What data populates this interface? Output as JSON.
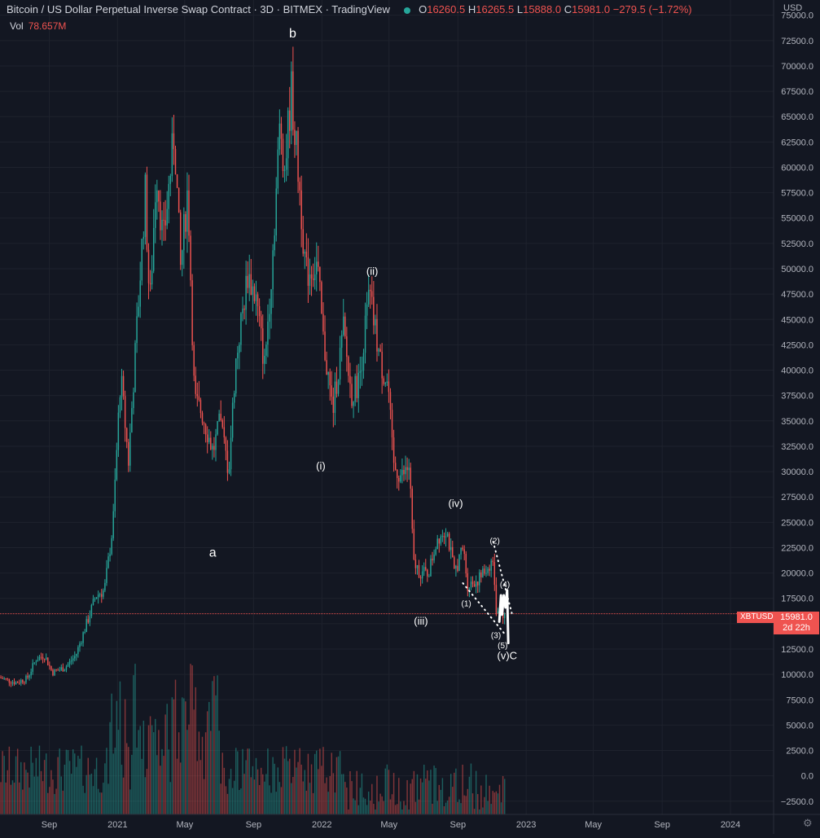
{
  "header": {
    "title": "Bitcoin / US Dollar Perpetual Inverse Swap Contract · 3D · BITMEX · TradingView",
    "open_label": "O",
    "open": "16260.5",
    "high_label": "H",
    "high": "16265.5",
    "low_label": "L",
    "low": "15888.0",
    "close_label": "C",
    "close": "15981.0",
    "change": "−279.5 (−1.72%)",
    "vol_label": "Vol",
    "vol_value": "78.657M",
    "currency": "USD"
  },
  "price_tag": {
    "symbol": "XBTUSD",
    "price": "15981.0",
    "countdown": "2d 22h"
  },
  "colors": {
    "background": "#131722",
    "up": "#26a69a",
    "down": "#ef5350",
    "grid": "#1e222d",
    "text": "#d1d4dc",
    "axis_text": "#b2b5be"
  },
  "chart_data": {
    "type": "candlestick",
    "y_ticks": [
      "75000.0",
      "72500.0",
      "70000.0",
      "67500.0",
      "65000.0",
      "62500.0",
      "60000.0",
      "57500.0",
      "55000.0",
      "52500.0",
      "50000.0",
      "47500.0",
      "45000.0",
      "42500.0",
      "40000.0",
      "37500.0",
      "35000.0",
      "32500.0",
      "30000.0",
      "27500.0",
      "25000.0",
      "22500.0",
      "20000.0",
      "17500.0",
      "15000.0",
      "12500.0",
      "10000.0",
      "7500.0",
      "5000.0",
      "2500.0",
      "0.0",
      "−2500.0"
    ],
    "ylim": [
      -3800,
      76500
    ],
    "x_ticks": [
      {
        "label": "Sep",
        "date": "2020-09-01"
      },
      {
        "label": "2021",
        "date": "2021-01-01"
      },
      {
        "label": "May",
        "date": "2021-05-01"
      },
      {
        "label": "Sep",
        "date": "2021-09-01"
      },
      {
        "label": "2022",
        "date": "2022-01-01"
      },
      {
        "label": "May",
        "date": "2022-05-01"
      },
      {
        "label": "Sep",
        "date": "2022-09-01"
      },
      {
        "label": "2023",
        "date": "2023-01-01"
      },
      {
        "label": "May",
        "date": "2023-05-01"
      },
      {
        "label": "Sep",
        "date": "2023-09-01"
      },
      {
        "label": "2024",
        "date": "2024-01-01"
      }
    ],
    "xlim": [
      "2020-06-05",
      "2024-03-18"
    ],
    "last_price": 15981,
    "price_path": [
      [
        "2020-06-05",
        9700
      ],
      [
        "2020-07-05",
        9200
      ],
      [
        "2020-07-25",
        9600
      ],
      [
        "2020-08-10",
        11500
      ],
      [
        "2020-08-25",
        11900
      ],
      [
        "2020-09-08",
        10200
      ],
      [
        "2020-10-01",
        10700
      ],
      [
        "2020-10-20",
        11900
      ],
      [
        "2020-11-10",
        15300
      ],
      [
        "2020-11-25",
        17800
      ],
      [
        "2020-12-10",
        18300
      ],
      [
        "2020-12-25",
        24500
      ],
      [
        "2021-01-08",
        39500
      ],
      [
        "2021-01-22",
        31000
      ],
      [
        "2021-02-08",
        46000
      ],
      [
        "2021-02-21",
        57500
      ],
      [
        "2021-03-01",
        46000
      ],
      [
        "2021-03-13",
        60000
      ],
      [
        "2021-03-25",
        52500
      ],
      [
        "2021-04-14",
        63500
      ],
      [
        "2021-04-25",
        50000
      ],
      [
        "2021-05-08",
        58000
      ],
      [
        "2021-05-20",
        37000
      ],
      [
        "2021-06-01",
        36000
      ],
      [
        "2021-06-22",
        32000
      ],
      [
        "2021-07-05",
        35000
      ],
      [
        "2021-07-20",
        30000
      ],
      [
        "2021-08-01",
        40500
      ],
      [
        "2021-08-23",
        49500
      ],
      [
        "2021-09-07",
        47000
      ],
      [
        "2021-09-22",
        40500
      ],
      [
        "2021-10-05",
        50000
      ],
      [
        "2021-10-20",
        64500
      ],
      [
        "2021-10-28",
        60000
      ],
      [
        "2021-11-09",
        67500
      ],
      [
        "2021-11-25",
        57000
      ],
      [
        "2021-12-05",
        49500
      ],
      [
        "2021-12-25",
        50500
      ],
      [
        "2022-01-05",
        43000
      ],
      [
        "2022-01-22",
        36000
      ],
      [
        "2022-02-10",
        44000
      ],
      [
        "2022-02-24",
        37500
      ],
      [
        "2022-03-10",
        39000
      ],
      [
        "2022-03-28",
        47500
      ],
      [
        "2022-04-18",
        40500
      ],
      [
        "2022-05-01",
        38500
      ],
      [
        "2022-05-10",
        30500
      ],
      [
        "2022-05-25",
        29500
      ],
      [
        "2022-06-08",
        30500
      ],
      [
        "2022-06-15",
        21000
      ],
      [
        "2022-06-28",
        20000
      ],
      [
        "2022-07-12",
        20000
      ],
      [
        "2022-07-28",
        23500
      ],
      [
        "2022-08-13",
        24400
      ],
      [
        "2022-08-27",
        20000
      ],
      [
        "2022-09-12",
        22500
      ],
      [
        "2022-09-20",
        18800
      ],
      [
        "2022-10-10",
        19400
      ],
      [
        "2022-10-28",
        20700
      ],
      [
        "2022-11-04",
        21300
      ],
      [
        "2022-11-09",
        16500
      ],
      [
        "2022-11-22",
        15981
      ]
    ],
    "annotations": [
      {
        "text": "b",
        "date": "2021-11-10",
        "price": 72800
      },
      {
        "text": "a",
        "date": "2021-06-20",
        "price": 21600
      },
      {
        "text": "(i)",
        "date": "2021-12-30",
        "price": 30200
      },
      {
        "text": "(ii)",
        "date": "2022-04-01",
        "price": 49400
      },
      {
        "text": "(iii)",
        "date": "2022-06-27",
        "price": 14900
      },
      {
        "text": "(iv)",
        "date": "2022-08-28",
        "price": 26500
      },
      {
        "text": "(1)",
        "date": "2022-09-16",
        "price": 16700
      },
      {
        "text": "(2)",
        "date": "2022-11-06",
        "price": 22900
      },
      {
        "text": "(3)",
        "date": "2022-11-08",
        "price": 13600
      },
      {
        "text": "(4)",
        "date": "2022-11-24",
        "price": 18600
      },
      {
        "text": "(5)",
        "date": "2022-11-20",
        "price": 12600
      },
      {
        "text": "(v)C",
        "date": "2022-11-28",
        "price": 11500
      }
    ],
    "trendlines": [
      {
        "from": [
          "2022-09-10",
          19000
        ],
        "to": [
          "2022-11-25",
          13900
        ]
      },
      {
        "from": [
          "2022-11-03",
          23100
        ],
        "to": [
          "2022-12-08",
          15700
        ]
      }
    ]
  }
}
